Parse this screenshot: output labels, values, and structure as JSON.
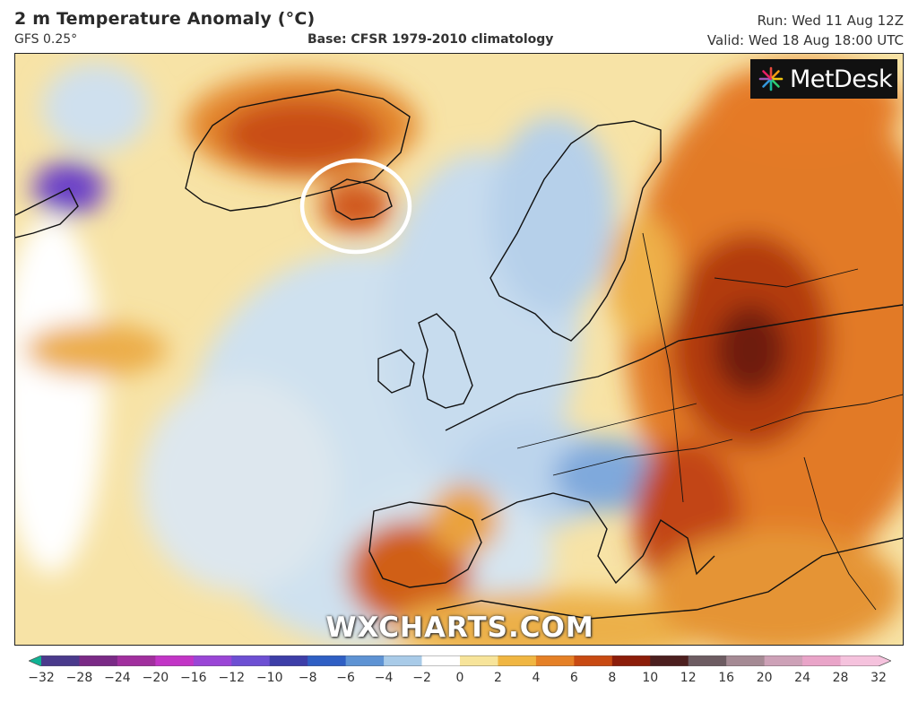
{
  "header": {
    "title": "2 m Temperature Anomaly (°C)",
    "model": "GFS 0.25°",
    "base": "Base: CFSR 1979-2010 climatology",
    "run": "Run: Wed 11 Aug 12Z",
    "valid": "Valid: Wed 18 Aug 18:00 UTC"
  },
  "map": {
    "region": "North Atlantic and Europe",
    "highlight_icon": "circle-highlight-iceland",
    "logo_text": "MetDesk",
    "logo_icon": "metdesk-star-icon",
    "watermark": "WXCHARTS.COM"
  },
  "legend": {
    "ticks": [
      "−32",
      "−28",
      "−24",
      "−20",
      "−16",
      "−12",
      "−10",
      "−8",
      "−6",
      "−4",
      "−2",
      "0",
      "2",
      "4",
      "6",
      "8",
      "10",
      "12",
      "16",
      "20",
      "24",
      "28",
      "32"
    ],
    "colors": [
      "#0fb394",
      "#4a3a8c",
      "#7a2a86",
      "#a12f9e",
      "#c235c6",
      "#9a45d6",
      "#6d4fd3",
      "#3d3ea8",
      "#2f5fc4",
      "#5e93d4",
      "#a9cbe8",
      "#ffffff",
      "#f7e49a",
      "#f0b642",
      "#e58026",
      "#c84a12",
      "#8c1d0a",
      "#4c1f1f",
      "#6d5c62",
      "#a58a94",
      "#cda1b7",
      "#e9a4c8",
      "#f5c2dd"
    ]
  }
}
